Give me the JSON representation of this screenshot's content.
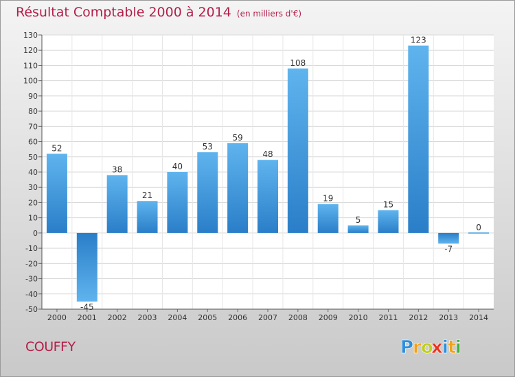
{
  "title": "Résultat Comptable 2000 à 2014",
  "unit": "(en milliers d'€)",
  "commune": "COUFFY",
  "logo": {
    "text": "Proxiti",
    "letters": [
      {
        "ch": "P",
        "color": "#2d8fd9"
      },
      {
        "ch": "r",
        "color": "#f0a21a"
      },
      {
        "ch": "o",
        "color": "#c0ce1c"
      },
      {
        "ch": "x",
        "color": "#e8331f"
      },
      {
        "ch": "i",
        "color": "#2d8fd9"
      },
      {
        "ch": "t",
        "color": "#f0a21a"
      },
      {
        "ch": "i",
        "color": "#41b33a"
      }
    ]
  },
  "colors": {
    "accent": "#b21f49",
    "bar_light": "#5fb4ee",
    "bar_dark": "#2a7ec8"
  },
  "chart_data": {
    "type": "bar",
    "categories": [
      "2000",
      "2001",
      "2002",
      "2003",
      "2004",
      "2005",
      "2006",
      "2007",
      "2008",
      "2009",
      "2010",
      "2011",
      "2012",
      "2013",
      "2014"
    ],
    "values": [
      52,
      -45,
      38,
      21,
      40,
      53,
      59,
      48,
      108,
      19,
      5,
      15,
      123,
      -7,
      0
    ],
    "ylim": [
      -50,
      130
    ],
    "yticks": [
      -50,
      -40,
      -30,
      -20,
      -10,
      0,
      10,
      20,
      30,
      40,
      50,
      60,
      70,
      80,
      90,
      100,
      110,
      120,
      130
    ],
    "grid": true
  }
}
